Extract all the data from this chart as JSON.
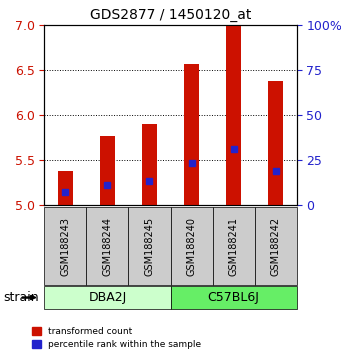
{
  "title": "GDS2877 / 1450120_at",
  "samples": [
    "GSM188243",
    "GSM188244",
    "GSM188245",
    "GSM188240",
    "GSM188241",
    "GSM188242"
  ],
  "red_values": [
    5.38,
    5.77,
    5.9,
    6.57,
    7.0,
    6.38
  ],
  "blue_values": [
    5.15,
    5.22,
    5.27,
    5.47,
    5.62,
    5.38
  ],
  "ylim": [
    5.0,
    7.0
  ],
  "yticks": [
    5.0,
    5.5,
    6.0,
    6.5,
    7.0
  ],
  "right_yticks": [
    0,
    25,
    50,
    75,
    100
  ],
  "right_ylabels": [
    "0",
    "25",
    "50",
    "75",
    "100%"
  ],
  "bar_color": "#cc1100",
  "blue_color": "#2222cc",
  "bar_width": 0.35,
  "group1_label": "DBA2J",
  "group2_label": "C57BL6J",
  "group1_color": "#ccffcc",
  "group2_color": "#66ee66",
  "strain_label": "strain",
  "legend_red": "transformed count",
  "legend_blue": "percentile rank within the sample",
  "background_color": "#ffffff",
  "left_tick_color": "#cc1100",
  "right_tick_color": "#2222cc",
  "sample_bg_color": "#cccccc",
  "figsize": [
    3.41,
    3.54
  ],
  "dpi": 100
}
